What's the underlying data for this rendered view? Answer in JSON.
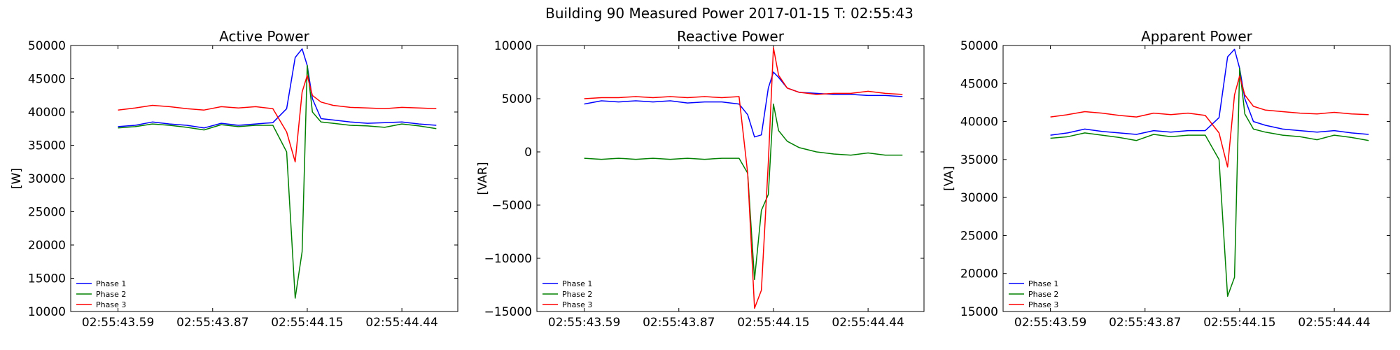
{
  "figure": {
    "suptitle": "Building 90 Measured Power 2017-01-15 T: 02:55:43"
  },
  "colors": {
    "phase1": "#0000ff",
    "phase2": "#008000",
    "phase3": "#ff0000"
  },
  "chart_data": [
    {
      "type": "line",
      "title": "Active Power",
      "xlabel": "",
      "ylabel": "[W]",
      "xlim": [
        0,
        1.125
      ],
      "ylim": [
        10000,
        50000
      ],
      "xticks": [
        0.1375,
        0.4125,
        0.6875,
        0.9625
      ],
      "xtick_labels": [
        "02:55:43.59",
        "02:55:43.87",
        "02:55:44.15",
        "02:55:44.44"
      ],
      "yticks": [
        10000,
        15000,
        20000,
        25000,
        30000,
        35000,
        40000,
        45000,
        50000
      ],
      "ytick_labels": [
        "10000",
        "15000",
        "20000",
        "25000",
        "30000",
        "35000",
        "40000",
        "45000",
        "50000"
      ],
      "legend": "lower-left",
      "x": [
        0.1375,
        0.1875,
        0.2375,
        0.2875,
        0.3375,
        0.3875,
        0.4375,
        0.4875,
        0.5375,
        0.5875,
        0.6275,
        0.6525,
        0.6725,
        0.6875,
        0.7025,
        0.7275,
        0.7625,
        0.8125,
        0.8625,
        0.9125,
        0.9625,
        1.0125,
        1.0625
      ],
      "series": [
        {
          "name": "Phase 1",
          "color": "#0000ff",
          "values": [
            37800,
            38000,
            38500,
            38200,
            38000,
            37600,
            38300,
            38000,
            38200,
            38400,
            40500,
            48200,
            49500,
            47000,
            42000,
            39000,
            38800,
            38500,
            38300,
            38400,
            38500,
            38200,
            38000
          ]
        },
        {
          "name": "Phase 2",
          "color": "#008000",
          "values": [
            37600,
            37800,
            38200,
            38000,
            37700,
            37300,
            38100,
            37800,
            38000,
            38000,
            34000,
            12000,
            19000,
            47000,
            40000,
            38500,
            38300,
            38000,
            37900,
            37700,
            38200,
            37900,
            37500
          ]
        },
        {
          "name": "Phase 3",
          "color": "#ff0000",
          "values": [
            40300,
            40600,
            41000,
            40800,
            40500,
            40300,
            40800,
            40600,
            40800,
            40500,
            37000,
            32500,
            43000,
            45500,
            42500,
            41500,
            41000,
            40700,
            40600,
            40500,
            40700,
            40600,
            40500
          ]
        }
      ]
    },
    {
      "type": "line",
      "title": "Reactive Power",
      "xlabel": "",
      "ylabel": "[VAR]",
      "xlim": [
        0,
        1.125
      ],
      "ylim": [
        -15000,
        10000
      ],
      "xticks": [
        0.1375,
        0.4125,
        0.6875,
        0.9625
      ],
      "xtick_labels": [
        "02:55:43.59",
        "02:55:43.87",
        "02:55:44.15",
        "02:55:44.44"
      ],
      "yticks": [
        -15000,
        -10000,
        -5000,
        0,
        5000,
        10000
      ],
      "ytick_labels": [
        "−15000",
        "−10000",
        "−5000",
        "0",
        "5000",
        "10000"
      ],
      "legend": "lower-left",
      "x": [
        0.1375,
        0.1875,
        0.2375,
        0.2875,
        0.3375,
        0.3875,
        0.4375,
        0.4875,
        0.5375,
        0.5875,
        0.6125,
        0.6325,
        0.6525,
        0.6725,
        0.6875,
        0.7025,
        0.7275,
        0.7625,
        0.8125,
        0.8625,
        0.9125,
        0.9625,
        1.0125,
        1.0625
      ],
      "series": [
        {
          "name": "Phase 1",
          "color": "#0000ff",
          "values": [
            4500,
            4800,
            4700,
            4800,
            4700,
            4800,
            4600,
            4700,
            4700,
            4500,
            3500,
            1400,
            1600,
            6000,
            7500,
            7000,
            6000,
            5600,
            5500,
            5400,
            5400,
            5300,
            5300,
            5200
          ]
        },
        {
          "name": "Phase 2",
          "color": "#008000",
          "values": [
            -600,
            -700,
            -600,
            -700,
            -600,
            -700,
            -600,
            -700,
            -600,
            -600,
            -2000,
            -12000,
            -5500,
            -4000,
            4500,
            2000,
            1000,
            400,
            0,
            -200,
            -300,
            -100,
            -300,
            -300
          ]
        },
        {
          "name": "Phase 3",
          "color": "#ff0000",
          "values": [
            5000,
            5100,
            5100,
            5200,
            5100,
            5200,
            5100,
            5200,
            5100,
            5200,
            -2000,
            -14700,
            -13000,
            -1000,
            9800,
            7200,
            6000,
            5600,
            5400,
            5500,
            5500,
            5700,
            5500,
            5400
          ]
        }
      ]
    },
    {
      "type": "line",
      "title": "Apparent Power",
      "xlabel": "",
      "ylabel": "[VA]",
      "xlim": [
        0,
        1.125
      ],
      "ylim": [
        15000,
        50000
      ],
      "xticks": [
        0.1375,
        0.4125,
        0.6875,
        0.9625
      ],
      "xtick_labels": [
        "02:55:43.59",
        "02:55:43.87",
        "02:55:44.15",
        "02:55:44.44"
      ],
      "yticks": [
        15000,
        20000,
        25000,
        30000,
        35000,
        40000,
        45000,
        50000
      ],
      "ytick_labels": [
        "15000",
        "20000",
        "25000",
        "30000",
        "35000",
        "40000",
        "45000",
        "50000"
      ],
      "legend": "lower-left",
      "x": [
        0.1375,
        0.1875,
        0.2375,
        0.2875,
        0.3375,
        0.3875,
        0.4375,
        0.4875,
        0.5375,
        0.5875,
        0.6275,
        0.6525,
        0.6725,
        0.6875,
        0.7025,
        0.7275,
        0.7625,
        0.8125,
        0.8625,
        0.9125,
        0.9625,
        1.0125,
        1.0625
      ],
      "series": [
        {
          "name": "Phase 1",
          "color": "#0000ff",
          "values": [
            38200,
            38500,
            39000,
            38700,
            38500,
            38300,
            38800,
            38600,
            38800,
            38800,
            40500,
            48500,
            49500,
            47000,
            43000,
            40000,
            39500,
            39000,
            38800,
            38600,
            38800,
            38500,
            38300
          ]
        },
        {
          "name": "Phase 2",
          "color": "#008000",
          "values": [
            37800,
            38000,
            38500,
            38200,
            37900,
            37500,
            38300,
            38000,
            38200,
            38200,
            35000,
            17000,
            19500,
            47000,
            41000,
            39000,
            38600,
            38200,
            38000,
            37600,
            38200,
            37900,
            37500
          ]
        },
        {
          "name": "Phase 3",
          "color": "#ff0000",
          "values": [
            40600,
            40900,
            41300,
            41100,
            40800,
            40600,
            41100,
            40900,
            41100,
            40800,
            38500,
            34000,
            43500,
            46000,
            43500,
            42000,
            41500,
            41300,
            41100,
            41000,
            41200,
            41000,
            40900
          ]
        }
      ]
    }
  ]
}
